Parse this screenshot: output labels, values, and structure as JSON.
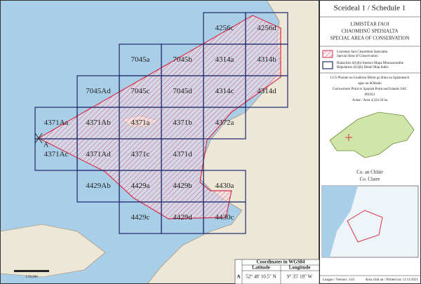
{
  "map_index": {
    "rows": [
      [
        "4256c",
        "4256d"
      ],
      [
        "7045a",
        "7045b",
        "4314a",
        "4314b"
      ],
      [
        "7045Ad",
        "7045c",
        "7045d",
        "4314c",
        "4314d"
      ],
      [
        "4371Aa",
        "4371Ab",
        "4371a",
        "4371b",
        "4372a"
      ],
      [
        "4371Ac",
        "4371Ad",
        "4371c",
        "4371d"
      ],
      [
        "4429Ab",
        "4429a",
        "4429b",
        "4430a"
      ],
      [
        "4429c",
        "4429d",
        "4430c"
      ]
    ],
    "point_label": "A",
    "scale": "1:50,000"
  },
  "panel": {
    "title": "Sceideal 1 / Schedule 1",
    "heading": [
      "LIMISTÉAR FAOI",
      "CHAOMHNÚ SPEISIALTA",
      "SPECIAL AREA OF CONSERVATION"
    ],
    "legend": [
      [
        "Limistéar faoi Chaomhnú Speisialta",
        "Special Area of Conservation"
      ],
      [
        "Rialachán 4(1)(b) Innéacs Mapa Mionsonraithe",
        "Regulation 4(1)(b) Detail Map Index"
      ]
    ],
    "site": [
      "LCS Phointe na Ceathrún Móire go Rinn na Spáinneach",
      "agus na hOileáin",
      "Carrowmore Point to Spanish Point and Islands SAC",
      "001021",
      "Achar / Area 4,224.50 ha"
    ],
    "county": [
      "Co. an Chláir",
      "Co. Claire"
    ],
    "version": "Leagan / Version: 3.03",
    "printed": "Arna chlú an / Printed on: 11/11/2021"
  },
  "coordinates": {
    "title": "Coordinates in WGS84",
    "point": "A",
    "headers": [
      "Latitude",
      "Longitude"
    ],
    "values": [
      "52° 48' 10.5\" N",
      "9° 35' 18\" W"
    ]
  }
}
